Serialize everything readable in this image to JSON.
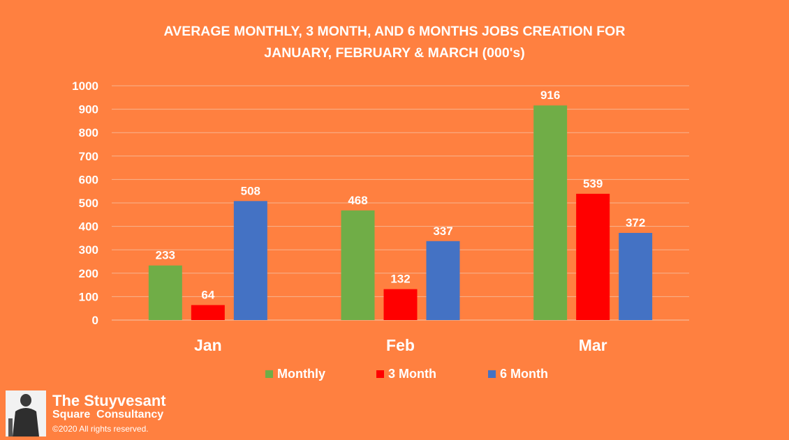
{
  "chart_data": {
    "type": "bar",
    "title": "AVERAGE MONTHLY, 3 MONTH, AND 6 MONTHS JOBS CREATION  FOR\nJANUARY, FEBRUARY & MARCH (000's)",
    "categories": [
      "Jan",
      "Feb",
      "Mar"
    ],
    "series": [
      {
        "name": "Monthly",
        "values": [
          233,
          468,
          916
        ],
        "color": "#70AD47"
      },
      {
        "name": "3 Month",
        "values": [
          64,
          132,
          539
        ],
        "color": "#FF0000"
      },
      {
        "name": "6 Month",
        "values": [
          508,
          337,
          372
        ],
        "color": "#4472C4"
      }
    ],
    "ylim": [
      0,
      1000
    ],
    "yticks": [
      0,
      100,
      200,
      300,
      400,
      500,
      600,
      700,
      800,
      900,
      1000
    ],
    "grid": true,
    "legend": "bottom",
    "data_labels": true
  },
  "branding": {
    "name": "The Stuyvesant",
    "subtitle": "Square  Consultancy",
    "copyright": "©2020 All rights reserved."
  }
}
